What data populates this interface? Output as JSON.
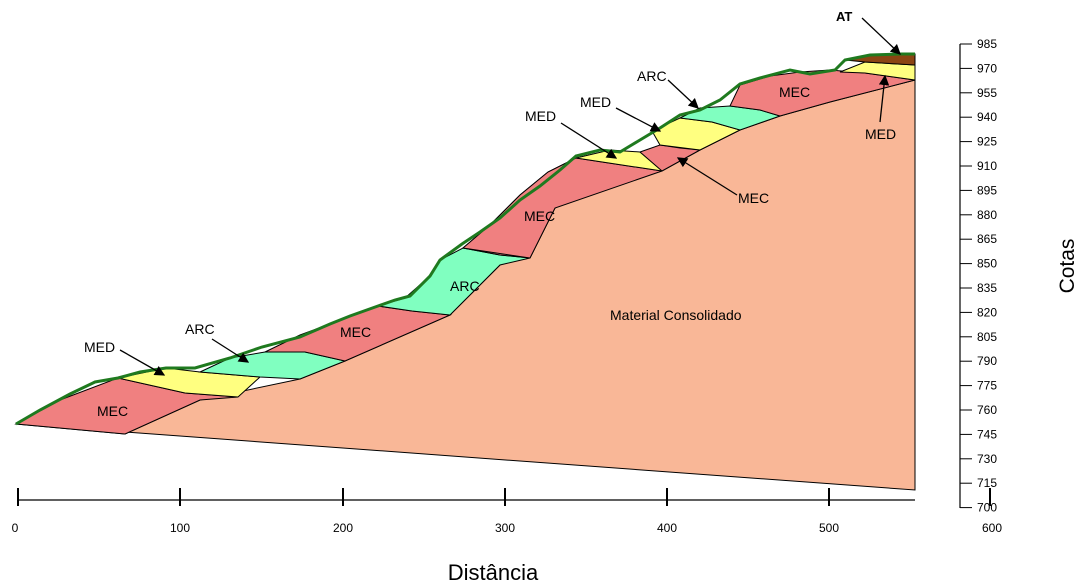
{
  "diagram": {
    "x_axis": {
      "title": "Distância",
      "ticks": [
        "0",
        "100",
        "200",
        "300",
        "400",
        "500",
        "600"
      ]
    },
    "y_axis": {
      "title": "Cotas",
      "ticks": [
        "985",
        "970",
        "955",
        "940",
        "925",
        "910",
        "895",
        "880",
        "865",
        "850",
        "835",
        "820",
        "805",
        "790",
        "775",
        "760",
        "745",
        "730",
        "715",
        "700"
      ]
    },
    "units": {
      "consolidated": "Material Consolidado",
      "mec": "MEC",
      "med": "MED",
      "arc": "ARC",
      "at": "AT"
    },
    "colors": {
      "consolidated": "#f9b797",
      "mec": "#f08080",
      "med": "#ffff80",
      "arc": "#80ffc0",
      "at": "#8b4513",
      "surface": "#1f7a1f",
      "outline": "#000000"
    }
  }
}
